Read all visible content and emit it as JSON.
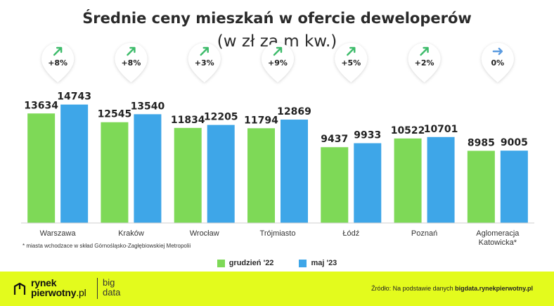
{
  "title": "Średnie ceny mieszkań w ofercie deweloperów",
  "subtitle": "(w zł za m kw.)",
  "footnote": "* miasta wchodzace w skład Górnośląsko-Zagłębiowskiej Metropolii",
  "legend": [
    {
      "label": "grudzień '22",
      "color": "#7ed957"
    },
    {
      "label": "maj '23",
      "color": "#3ea6e8"
    }
  ],
  "colors": {
    "series1": "#7ed957",
    "series2": "#3ea6e8",
    "arrow_up": "#3dbb6a",
    "arrow_flat": "#5b9be0",
    "footer": "#e3fb1d"
  },
  "chart_data": {
    "type": "bar",
    "title": "Średnie ceny mieszkań w ofercie deweloperów",
    "subtitle": "(w zł za m kw.)",
    "categories": [
      "Warszawa",
      "Kraków",
      "Wrocław",
      "Trójmiasto",
      "Łódź",
      "Poznań",
      "Aglomeracja Katowicka*"
    ],
    "series": [
      {
        "name": "grudzień '22",
        "values": [
          13634,
          12545,
          11834,
          11794,
          9437,
          10522,
          8985
        ]
      },
      {
        "name": "maj '23",
        "values": [
          14743,
          13540,
          12205,
          12869,
          9933,
          10701,
          9005
        ]
      }
    ],
    "changes": [
      "+8%",
      "+8%",
      "+3%",
      "+9%",
      "+5%",
      "+2%",
      "0%"
    ],
    "change_direction": [
      "up",
      "up",
      "up",
      "up",
      "up",
      "up",
      "flat"
    ],
    "ylim": [
      0,
      19000
    ],
    "grid": false,
    "legend_position": "bottom"
  },
  "footer": {
    "brand_line1": "rynek",
    "brand_line2": "pierwotny",
    "brand_tld": ".pl",
    "bigdata_line1": "big",
    "bigdata_line2": "data",
    "source_prefix": "Źródło: Na podstawie danych ",
    "source_link": "bigdata.rynekpierwotny.pl"
  }
}
